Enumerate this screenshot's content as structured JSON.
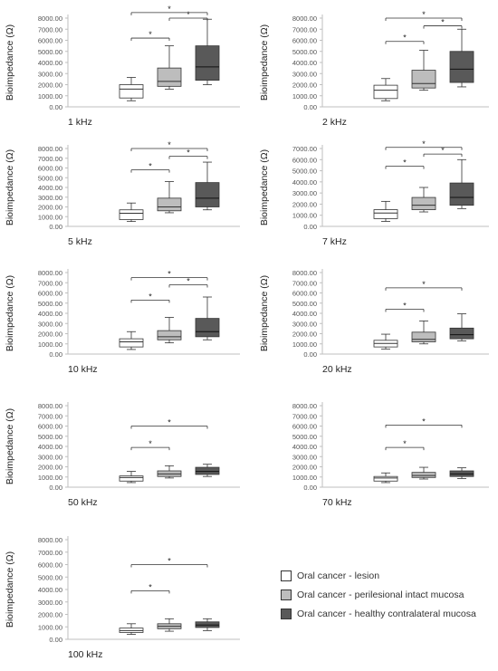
{
  "colors": {
    "lesion": "#ffffff",
    "perilesional": "#bdbdbd",
    "contralateral": "#595959",
    "box_stroke": "#333333",
    "axis": "#bfbfbf",
    "grid": "#e2e2e2",
    "text": "#222222"
  },
  "legend": [
    {
      "label": "Oral cancer - lesion",
      "color": "#ffffff"
    },
    {
      "label": "Oral cancer - perilesional intact mucosa",
      "color": "#bdbdbd"
    },
    {
      "label": "Oral cancer - healthy contralateral mucosa",
      "color": "#595959"
    }
  ],
  "chart_data": [
    {
      "type": "box",
      "panel_label": "1 kHz",
      "ylabel": "Bioimpedance (Ω)",
      "ylim": [
        0,
        8000
      ],
      "yticks": [
        "0.00",
        "1000.00",
        "2000.00",
        "3000.00",
        "4000.00",
        "5000.00",
        "6000.00",
        "7000.00",
        "8000.00"
      ],
      "series": [
        {
          "name": "Oral cancer - lesion",
          "min": 550,
          "q1": 800,
          "median": 1600,
          "q3": 2000,
          "max": 2650
        },
        {
          "name": "Oral cancer - perilesional intact mucosa",
          "min": 1600,
          "q1": 1850,
          "median": 2300,
          "q3": 3500,
          "max": 5500
        },
        {
          "name": "Oral cancer - healthy contralateral mucosa",
          "min": 2000,
          "q1": 2400,
          "median": 3600,
          "q3": 5500,
          "max": 7900
        }
      ],
      "significance": [
        {
          "from": 0,
          "to": 1,
          "label": "*",
          "y": 6200
        },
        {
          "from": 1,
          "to": 2,
          "label": "*",
          "y": 8000
        },
        {
          "from": 0,
          "to": 2,
          "label": "*",
          "y": 8500
        }
      ]
    },
    {
      "type": "box",
      "panel_label": "2 kHz",
      "ylabel": "Bioimpedance (Ω)",
      "ylim": [
        0,
        8000
      ],
      "yticks": [
        "0.00",
        "1000.00",
        "2000.00",
        "3000.00",
        "4000.00",
        "5000.00",
        "6000.00",
        "7000.00",
        "8000.00"
      ],
      "series": [
        {
          "name": "Oral cancer - lesion",
          "min": 550,
          "q1": 750,
          "median": 1500,
          "q3": 1950,
          "max": 2550
        },
        {
          "name": "Oral cancer - perilesional intact mucosa",
          "min": 1500,
          "q1": 1700,
          "median": 2100,
          "q3": 3300,
          "max": 5100
        },
        {
          "name": "Oral cancer - healthy contralateral mucosa",
          "min": 1800,
          "q1": 2200,
          "median": 3400,
          "q3": 5000,
          "max": 7000
        },
        {
          "name": "",
          "min": 0,
          "q1": 0,
          "median": 0,
          "q3": 0,
          "max": 0,
          "hidden": true
        }
      ],
      "significance": [
        {
          "from": 0,
          "to": 1,
          "label": "*",
          "y": 5900
        },
        {
          "from": 1,
          "to": 2,
          "label": "*",
          "y": 7300
        },
        {
          "from": 0,
          "to": 2,
          "label": "*",
          "y": 8000
        }
      ]
    },
    {
      "type": "box",
      "panel_label": "5 kHz",
      "ylabel": "Bioimpedance (Ω)",
      "ylim": [
        0,
        8000
      ],
      "yticks": [
        "0.00",
        "1000.00",
        "2000.00",
        "3000.00",
        "4000.00",
        "5000.00",
        "6000.00",
        "7000.00",
        "8000.00"
      ],
      "series": [
        {
          "name": "Oral cancer - lesion",
          "min": 500,
          "q1": 700,
          "median": 1350,
          "q3": 1700,
          "max": 2400
        },
        {
          "name": "Oral cancer - perilesional intact mucosa",
          "min": 1400,
          "q1": 1600,
          "median": 2000,
          "q3": 2900,
          "max": 4600
        },
        {
          "name": "Oral cancer - healthy contralateral mucosa",
          "min": 1700,
          "q1": 2000,
          "median": 2900,
          "q3": 4500,
          "max": 6600
        }
      ],
      "significance": [
        {
          "from": 0,
          "to": 1,
          "label": "*",
          "y": 5800
        },
        {
          "from": 1,
          "to": 2,
          "label": "*",
          "y": 7200
        },
        {
          "from": 0,
          "to": 2,
          "label": "*",
          "y": 8000
        }
      ]
    },
    {
      "type": "box",
      "panel_label": "7 kHz",
      "ylabel": "Bioimpedance (Ω)",
      "ylim": [
        0,
        7000
      ],
      "yticks": [
        "0.00",
        "1000.00",
        "2000.00",
        "3000.00",
        "4000.00",
        "5000.00",
        "6000.00",
        "7000.00"
      ],
      "series": [
        {
          "name": "Oral cancer - lesion",
          "min": 450,
          "q1": 700,
          "median": 1200,
          "q3": 1500,
          "max": 2250
        },
        {
          "name": "Oral cancer - perilesional intact mucosa",
          "min": 1300,
          "q1": 1500,
          "median": 1900,
          "q3": 2600,
          "max": 3500
        },
        {
          "name": "Oral cancer - healthy contralateral mucosa",
          "min": 1600,
          "q1": 1900,
          "median": 2600,
          "q3": 3900,
          "max": 6000
        }
      ],
      "significance": [
        {
          "from": 0,
          "to": 1,
          "label": "*",
          "y": 5400
        },
        {
          "from": 1,
          "to": 2,
          "label": "*",
          "y": 6500
        },
        {
          "from": 0,
          "to": 2,
          "label": "*",
          "y": 7100
        }
      ]
    },
    {
      "type": "box",
      "panel_label": "10 kHz",
      "ylabel": "Bioimpedance (Ω)",
      "ylim": [
        0,
        8000
      ],
      "yticks": [
        "0.00",
        "1000.00",
        "2000.00",
        "3000.00",
        "4000.00",
        "5000.00",
        "6000.00",
        "7000.00",
        "8000.00"
      ],
      "series": [
        {
          "name": "Oral cancer - lesion",
          "min": 450,
          "q1": 700,
          "median": 1200,
          "q3": 1500,
          "max": 2200
        },
        {
          "name": "Oral cancer - perilesional intact mucosa",
          "min": 1100,
          "q1": 1400,
          "median": 1700,
          "q3": 2300,
          "max": 3600
        },
        {
          "name": "Oral cancer - healthy contralateral mucosa",
          "min": 1400,
          "q1": 1700,
          "median": 2200,
          "q3": 3500,
          "max": 5600
        }
      ],
      "significance": [
        {
          "from": 0,
          "to": 1,
          "label": "*",
          "y": 5300
        },
        {
          "from": 1,
          "to": 2,
          "label": "*",
          "y": 6800
        },
        {
          "from": 0,
          "to": 2,
          "label": "*",
          "y": 7500
        }
      ]
    },
    {
      "type": "box",
      "panel_label": "20 kHz",
      "ylabel": "Bioimpedance (Ω)",
      "ylim": [
        0,
        8000
      ],
      "yticks": [
        "0.00",
        "1000.00",
        "2000.00",
        "3000.00",
        "4000.00",
        "5000.00",
        "6000.00",
        "7000.00",
        "8000.00"
      ],
      "series": [
        {
          "name": "Oral cancer - lesion",
          "min": 500,
          "q1": 700,
          "median": 1050,
          "q3": 1350,
          "max": 1950
        },
        {
          "name": "Oral cancer - perilesional intact mucosa",
          "min": 1000,
          "q1": 1200,
          "median": 1450,
          "q3": 2150,
          "max": 3250
        },
        {
          "name": "Oral cancer - healthy contralateral mucosa",
          "min": 1300,
          "q1": 1500,
          "median": 1900,
          "q3": 2550,
          "max": 3950
        }
      ],
      "significance": [
        {
          "from": 0,
          "to": 1,
          "label": "*",
          "y": 4400
        },
        {
          "from": 0,
          "to": 2,
          "label": "*",
          "y": 6500
        }
      ]
    },
    {
      "type": "box",
      "panel_label": "50 kHz",
      "ylabel": "Bioimpedance (Ω)",
      "ylim": [
        0,
        8000
      ],
      "yticks": [
        "0.00",
        "1000.00",
        "2000.00",
        "3000.00",
        "4000.00",
        "5000.00",
        "6000.00",
        "7000.00",
        "8000.00"
      ],
      "series": [
        {
          "name": "Oral cancer - lesion",
          "min": 450,
          "q1": 600,
          "median": 950,
          "q3": 1100,
          "max": 1550
        },
        {
          "name": "Oral cancer - perilesional intact mucosa",
          "min": 900,
          "q1": 1050,
          "median": 1300,
          "q3": 1600,
          "max": 2100
        },
        {
          "name": "Oral cancer - healthy contralateral mucosa",
          "min": 1050,
          "q1": 1250,
          "median": 1550,
          "q3": 1950,
          "max": 2250
        }
      ],
      "significance": [
        {
          "from": 0,
          "to": 1,
          "label": "*",
          "y": 3900
        },
        {
          "from": 0,
          "to": 2,
          "label": "*",
          "y": 6000
        }
      ]
    },
    {
      "type": "box",
      "panel_label": "70 kHz",
      "ylabel": "",
      "ylim": [
        0,
        8000
      ],
      "yticks": [
        "0.00",
        "1000.00",
        "2000.00",
        "3000.00",
        "4000.00",
        "5000.00",
        "6000.00",
        "7000.00",
        "8000.00"
      ],
      "series": [
        {
          "name": "Oral cancer - lesion",
          "min": 450,
          "q1": 600,
          "median": 900,
          "q3": 1050,
          "max": 1400
        },
        {
          "name": "Oral cancer - perilesional intact mucosa",
          "min": 800,
          "q1": 950,
          "median": 1150,
          "q3": 1450,
          "max": 1950
        },
        {
          "name": "Oral cancer - healthy contralateral mucosa",
          "min": 850,
          "q1": 1050,
          "median": 1300,
          "q3": 1600,
          "max": 1900
        }
      ],
      "significance": [
        {
          "from": 0,
          "to": 1,
          "label": "*",
          "y": 3900
        },
        {
          "from": 0,
          "to": 2,
          "label": "*",
          "y": 6100
        }
      ]
    },
    {
      "type": "box",
      "panel_label": "100 kHz",
      "ylabel": "Bioimpedance (Ω)",
      "ylim": [
        0,
        8000
      ],
      "yticks": [
        "0.00",
        "1000.00",
        "2000.00",
        "3000.00",
        "4000.00",
        "5000.00",
        "6000.00",
        "7000.00",
        "8000.00"
      ],
      "series": [
        {
          "name": "Oral cancer - lesion",
          "min": 400,
          "q1": 550,
          "median": 700,
          "q3": 900,
          "max": 1250
        },
        {
          "name": "Oral cancer - perilesional intact mucosa",
          "min": 650,
          "q1": 850,
          "median": 1050,
          "q3": 1250,
          "max": 1650
        },
        {
          "name": "Oral cancer - healthy contralateral mucosa",
          "min": 700,
          "q1": 950,
          "median": 1150,
          "q3": 1400,
          "max": 1650
        }
      ],
      "significance": [
        {
          "from": 0,
          "to": 1,
          "label": "*",
          "y": 3900
        },
        {
          "from": 0,
          "to": 2,
          "label": "*",
          "y": 6000
        }
      ]
    }
  ]
}
